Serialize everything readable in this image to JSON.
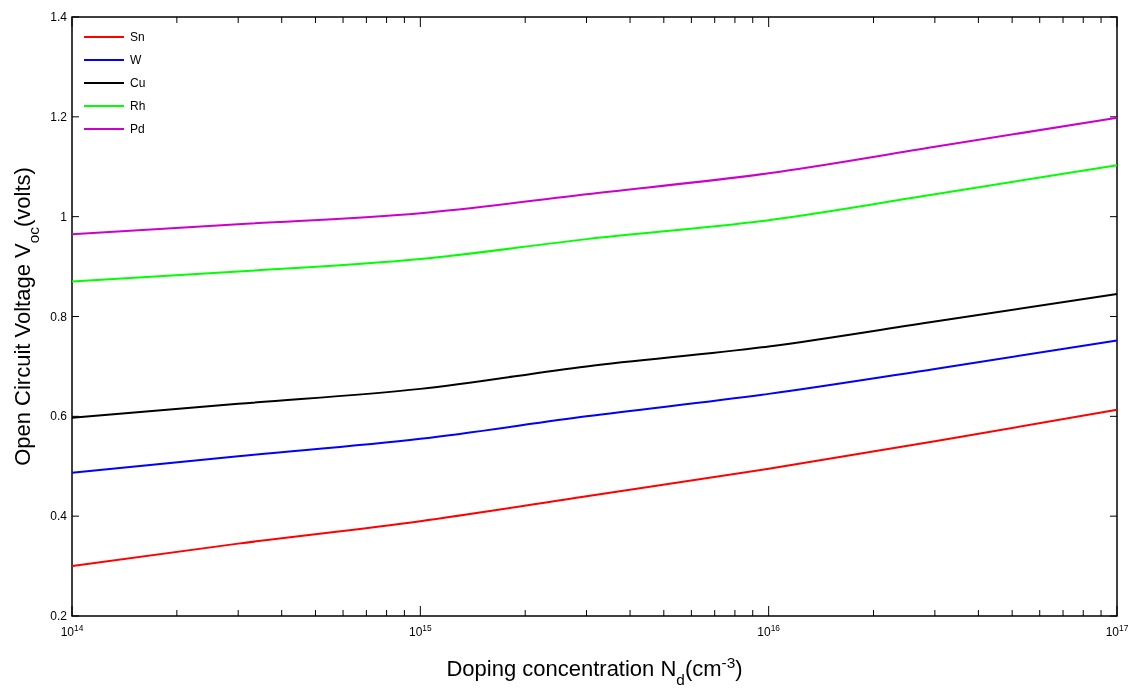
{
  "chart_data": {
    "type": "line",
    "xlabel": "Doping concentration N$_{d}$(cm$^{-3}$)",
    "ylabel": "Open Circuit Voltage V$_{oc}$(volts)",
    "x": [
      100000000000000.0,
      300000000000000.0,
      1000000000000000.0,
      3000000000000000.0,
      1e+16,
      3e+16,
      1e+17
    ],
    "series": [
      {
        "name": "Sn",
        "color": "#ff0000",
        "values": [
          0.3,
          0.345,
          0.39,
          0.44,
          0.495,
          0.55,
          0.613
        ]
      },
      {
        "name": "W",
        "color": "#0000ff",
        "values": [
          0.487,
          0.52,
          0.555,
          0.6,
          0.645,
          0.695,
          0.752
        ]
      },
      {
        "name": "Cu",
        "color": "#000000",
        "values": [
          0.597,
          0.625,
          0.655,
          0.7,
          0.74,
          0.79,
          0.845
        ]
      },
      {
        "name": "Rh",
        "color": "#00ff00",
        "values": [
          0.87,
          0.89,
          0.915,
          0.955,
          0.993,
          1.045,
          1.103
        ]
      },
      {
        "name": "Pd",
        "color": "#cc00cc",
        "values": [
          0.965,
          0.985,
          1.007,
          1.045,
          1.087,
          1.14,
          1.198
        ]
      }
    ],
    "log": "x",
    "xlim": [
      100000000000000.0,
      1e+17
    ],
    "xticks": [
      {
        "value": 100000000000000.0,
        "label": "10$^{14}$"
      },
      {
        "value": 1000000000000000.0,
        "label": "10$^{15}$"
      },
      {
        "value": 1e+16,
        "label": "10$^{16}$"
      },
      {
        "value": 1e+17,
        "label": "10$^{17}$"
      }
    ],
    "ylim": [
      0.2,
      1.4
    ],
    "yticks": [
      0.2,
      0.4,
      0.6,
      0.8,
      1,
      1.2,
      1.4
    ],
    "grid": false,
    "legend": "top left",
    "line_style": "solid"
  }
}
